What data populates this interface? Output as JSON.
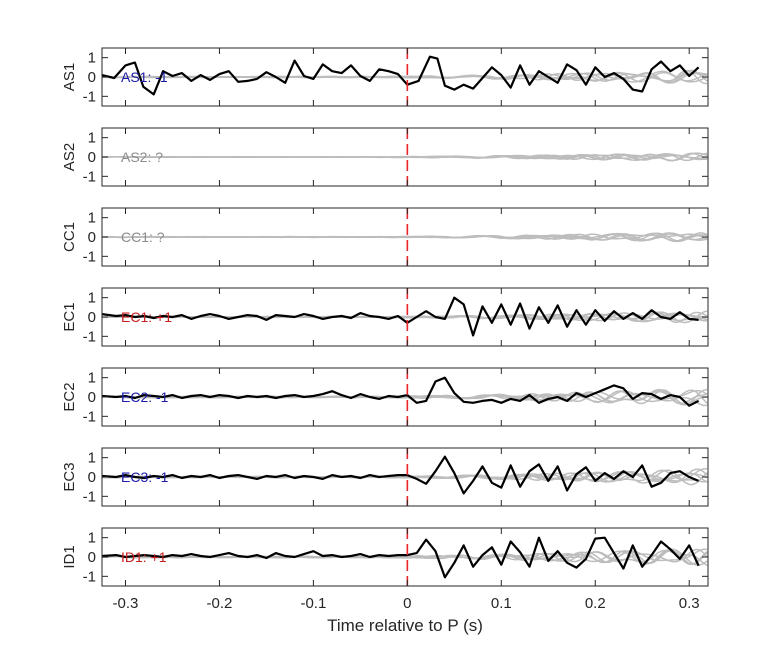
{
  "chart_data": {
    "type": "line",
    "xlabel": "Time relative to P (s)",
    "xlim": [
      -0.325,
      0.32
    ],
    "x_ticks": [
      -0.3,
      -0.2,
      -0.1,
      0,
      0.1,
      0.2,
      0.3
    ],
    "x_tick_labels": [
      "-0.3",
      "-0.2",
      "-0.1",
      "0",
      "0.1",
      "0.2",
      "0.3"
    ],
    "ylim": [
      -1.5,
      1.5
    ],
    "y_ticks": [
      -1,
      0,
      1
    ],
    "y_tick_labels": [
      "-1",
      "0",
      "1"
    ],
    "marker_time": 0,
    "colors": {
      "trace": "#000000",
      "background": "#bdbdbd",
      "marker": "#e8262a",
      "negative": "#1a1aa8",
      "positive": "#c81e1e",
      "unknown": "#8c8c8c"
    },
    "panels": [
      {
        "ylabel": "AS1",
        "annotation": "AS1: -1",
        "polarity": "negative",
        "bg_amp": 0.35,
        "bg_seed": 1,
        "trace": {
          "x": [
            -0.325,
            -0.312,
            -0.3,
            -0.29,
            -0.281,
            -0.27,
            -0.26,
            -0.25,
            -0.24,
            -0.23,
            -0.22,
            -0.21,
            -0.2,
            -0.19,
            -0.18,
            -0.17,
            -0.16,
            -0.15,
            -0.14,
            -0.13,
            -0.12,
            -0.11,
            -0.1,
            -0.09,
            -0.08,
            -0.07,
            -0.06,
            -0.05,
            -0.04,
            -0.03,
            -0.02,
            -0.01,
            0.0,
            0.012,
            0.024,
            0.032,
            0.04,
            0.05,
            0.06,
            0.07,
            0.08,
            0.09,
            0.1,
            0.11,
            0.12,
            0.13,
            0.14,
            0.15,
            0.16,
            0.17,
            0.18,
            0.19,
            0.2,
            0.21,
            0.22,
            0.23,
            0.24,
            0.25,
            0.26,
            0.27,
            0.28,
            0.29,
            0.3,
            0.31
          ],
          "y": [
            0.1,
            -0.05,
            0.6,
            0.75,
            -0.5,
            -0.9,
            0.3,
            0.05,
            0.2,
            -0.2,
            0.1,
            -0.15,
            0.15,
            0.3,
            -0.25,
            -0.2,
            -0.1,
            0.25,
            0.0,
            -0.3,
            0.85,
            0.05,
            -0.1,
            0.65,
            0.3,
            0.2,
            0.6,
            0.05,
            -0.2,
            0.4,
            0.3,
            0.15,
            -0.4,
            -0.2,
            1.05,
            0.95,
            -0.45,
            -0.65,
            -0.4,
            -0.6,
            -0.05,
            0.5,
            0.1,
            -0.55,
            0.6,
            -0.4,
            0.3,
            0.0,
            -0.3,
            0.65,
            0.35,
            -0.4,
            0.5,
            0.0,
            0.2,
            -0.1,
            -0.65,
            -0.75,
            0.4,
            0.8,
            0.3,
            0.6,
            0.05,
            0.5
          ]
        }
      },
      {
        "ylabel": "AS2",
        "annotation": "AS2: ?",
        "polarity": "unknown",
        "bg_amp": 0.22,
        "bg_seed": 2,
        "trace": null
      },
      {
        "ylabel": "CC1",
        "annotation": "CC1: ?",
        "polarity": "unknown",
        "bg_amp": 0.25,
        "bg_seed": 3,
        "trace": null
      },
      {
        "ylabel": "EC1",
        "annotation": "EC1: +1",
        "polarity": "positive",
        "bg_amp": 0.3,
        "bg_seed": 4,
        "trace": {
          "x": [
            -0.325,
            -0.31,
            -0.3,
            -0.29,
            -0.28,
            -0.27,
            -0.26,
            -0.25,
            -0.24,
            -0.23,
            -0.22,
            -0.21,
            -0.2,
            -0.19,
            -0.18,
            -0.17,
            -0.16,
            -0.15,
            -0.14,
            -0.13,
            -0.12,
            -0.11,
            -0.1,
            -0.09,
            -0.08,
            -0.07,
            -0.06,
            -0.05,
            -0.04,
            -0.03,
            -0.02,
            -0.01,
            0.0,
            0.01,
            0.02,
            0.03,
            0.04,
            0.05,
            0.06,
            0.07,
            0.08,
            0.09,
            0.1,
            0.11,
            0.12,
            0.13,
            0.14,
            0.15,
            0.16,
            0.17,
            0.18,
            0.19,
            0.2,
            0.21,
            0.22,
            0.23,
            0.24,
            0.25,
            0.26,
            0.27,
            0.28,
            0.29,
            0.3,
            0.31
          ],
          "y": [
            0.15,
            0.05,
            0.1,
            0.0,
            0.05,
            -0.05,
            0.05,
            0.0,
            0.1,
            -0.1,
            0.05,
            0.15,
            0.05,
            -0.1,
            0.0,
            0.1,
            0.05,
            -0.15,
            0.1,
            0.05,
            0.0,
            0.15,
            0.05,
            -0.1,
            0.0,
            0.05,
            -0.05,
            0.2,
            0.05,
            0.0,
            -0.1,
            0.05,
            -0.3,
            0.0,
            0.3,
            0.0,
            -0.1,
            1.0,
            0.65,
            -0.95,
            0.55,
            -0.3,
            0.65,
            -0.4,
            0.7,
            -0.6,
            0.5,
            -0.3,
            0.6,
            -0.5,
            0.35,
            -0.4,
            0.35,
            -0.2,
            0.3,
            -0.1,
            0.2,
            -0.1,
            0.35,
            0.0,
            -0.1,
            0.25,
            -0.1,
            -0.15
          ]
        }
      },
      {
        "ylabel": "EC2",
        "annotation": "EC2: -1",
        "polarity": "negative",
        "bg_amp": 0.45,
        "bg_seed": 5,
        "trace": {
          "x": [
            -0.325,
            -0.31,
            -0.3,
            -0.29,
            -0.28,
            -0.27,
            -0.26,
            -0.25,
            -0.24,
            -0.23,
            -0.22,
            -0.21,
            -0.2,
            -0.19,
            -0.18,
            -0.17,
            -0.16,
            -0.15,
            -0.14,
            -0.13,
            -0.12,
            -0.11,
            -0.1,
            -0.09,
            -0.08,
            -0.07,
            -0.06,
            -0.05,
            -0.04,
            -0.03,
            -0.02,
            -0.01,
            0.0,
            0.01,
            0.02,
            0.03,
            0.04,
            0.05,
            0.06,
            0.07,
            0.08,
            0.09,
            0.1,
            0.11,
            0.12,
            0.13,
            0.14,
            0.15,
            0.16,
            0.17,
            0.18,
            0.19,
            0.2,
            0.21,
            0.22,
            0.23,
            0.24,
            0.25,
            0.26,
            0.27,
            0.28,
            0.29,
            0.3,
            0.31
          ],
          "y": [
            0.05,
            0.0,
            0.05,
            -0.05,
            0.1,
            0.05,
            0.0,
            0.1,
            -0.05,
            0.05,
            0.1,
            0.0,
            0.1,
            0.05,
            -0.05,
            0.05,
            0.0,
            0.05,
            -0.05,
            0.05,
            0.1,
            0.0,
            0.05,
            0.15,
            0.3,
            0.1,
            -0.05,
            0.15,
            0.0,
            -0.1,
            0.05,
            0.0,
            0.1,
            -0.3,
            -0.2,
            0.8,
            1.0,
            0.2,
            -0.25,
            -0.3,
            -0.2,
            -0.15,
            -0.3,
            -0.1,
            -0.2,
            0.1,
            -0.3,
            -0.1,
            0.0,
            -0.2,
            0.2,
            0.0,
            0.2,
            0.4,
            0.6,
            0.45,
            -0.1,
            0.2,
            0.15,
            -0.1,
            0.1,
            0.0,
            -0.45,
            -0.2
          ]
        }
      },
      {
        "ylabel": "EC3",
        "annotation": "EC3: -1",
        "polarity": "negative",
        "bg_amp": 0.4,
        "bg_seed": 6,
        "trace": {
          "x": [
            -0.325,
            -0.31,
            -0.3,
            -0.29,
            -0.28,
            -0.27,
            -0.26,
            -0.25,
            -0.24,
            -0.23,
            -0.22,
            -0.21,
            -0.2,
            -0.19,
            -0.18,
            -0.17,
            -0.16,
            -0.15,
            -0.14,
            -0.13,
            -0.12,
            -0.11,
            -0.1,
            -0.09,
            -0.08,
            -0.07,
            -0.06,
            -0.05,
            -0.04,
            -0.03,
            -0.02,
            -0.01,
            0.0,
            0.01,
            0.02,
            0.03,
            0.04,
            0.05,
            0.06,
            0.07,
            0.08,
            0.09,
            0.1,
            0.11,
            0.12,
            0.13,
            0.14,
            0.15,
            0.16,
            0.17,
            0.18,
            0.19,
            0.2,
            0.21,
            0.22,
            0.23,
            0.24,
            0.25,
            0.26,
            0.27,
            0.28,
            0.29,
            0.3,
            0.31
          ],
          "y": [
            0.05,
            0.0,
            0.1,
            0.0,
            -0.05,
            0.05,
            0.0,
            0.1,
            -0.05,
            0.05,
            0.0,
            0.1,
            -0.05,
            0.05,
            0.1,
            0.0,
            -0.1,
            0.05,
            0.0,
            0.1,
            -0.05,
            0.05,
            0.0,
            -0.1,
            0.1,
            0.0,
            0.05,
            -0.05,
            0.1,
            0.0,
            0.05,
            0.1,
            0.1,
            -0.1,
            -0.35,
            0.3,
            1.05,
            0.2,
            -0.85,
            -0.2,
            0.55,
            -0.3,
            -0.55,
            0.6,
            -0.5,
            0.3,
            0.65,
            -0.2,
            0.55,
            -0.7,
            0.15,
            0.5,
            -0.2,
            0.2,
            -0.1,
            0.3,
            0.0,
            0.6,
            -0.5,
            -0.3,
            0.2,
            0.3,
            0.0,
            -0.2
          ]
        }
      },
      {
        "ylabel": "ID1",
        "annotation": "ID1: +1",
        "polarity": "positive",
        "bg_amp": 0.45,
        "bg_seed": 7,
        "trace": {
          "x": [
            -0.325,
            -0.31,
            -0.3,
            -0.29,
            -0.28,
            -0.27,
            -0.26,
            -0.25,
            -0.24,
            -0.23,
            -0.22,
            -0.21,
            -0.2,
            -0.19,
            -0.18,
            -0.17,
            -0.16,
            -0.15,
            -0.14,
            -0.13,
            -0.12,
            -0.11,
            -0.1,
            -0.09,
            -0.08,
            -0.07,
            -0.06,
            -0.05,
            -0.04,
            -0.03,
            -0.02,
            -0.01,
            0.0,
            0.01,
            0.02,
            0.03,
            0.04,
            0.05,
            0.06,
            0.07,
            0.08,
            0.09,
            0.1,
            0.11,
            0.12,
            0.13,
            0.14,
            0.15,
            0.16,
            0.17,
            0.18,
            0.19,
            0.2,
            0.21,
            0.22,
            0.23,
            0.24,
            0.25,
            0.26,
            0.27,
            0.28,
            0.29,
            0.3,
            0.31
          ],
          "y": [
            0.05,
            0.1,
            0.0,
            0.05,
            0.1,
            0.05,
            0.0,
            0.1,
            0.05,
            0.15,
            0.05,
            0.0,
            0.1,
            0.2,
            0.05,
            0.0,
            0.1,
            -0.05,
            0.2,
            0.05,
            0.0,
            0.15,
            0.3,
            0.05,
            0.1,
            0.0,
            0.05,
            0.15,
            0.0,
            0.1,
            0.05,
            0.1,
            0.1,
            0.2,
            0.9,
            0.3,
            -1.05,
            -0.3,
            0.6,
            -0.5,
            0.1,
            0.5,
            -0.4,
            0.8,
            0.25,
            -0.5,
            1.0,
            -0.2,
            0.3,
            -0.3,
            -0.55,
            -0.1,
            0.95,
            1.0,
            0.2,
            -0.6,
            0.6,
            -0.5,
            0.1,
            0.8,
            0.4,
            -0.1,
            0.6,
            -0.45
          ]
        }
      }
    ]
  }
}
